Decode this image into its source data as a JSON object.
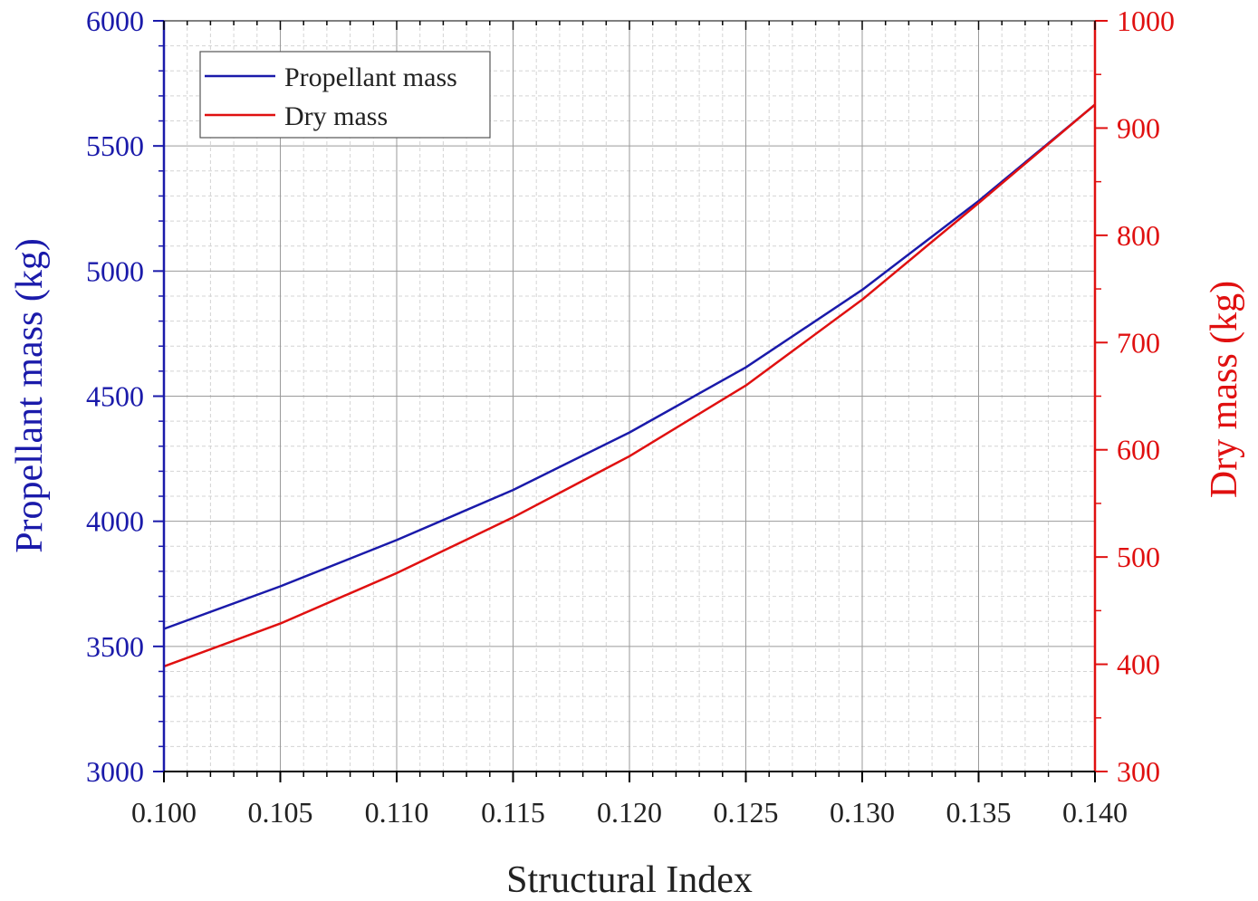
{
  "chart_data": {
    "type": "line",
    "xlabel": "Structural Index",
    "ylabel_left": "Propellant mass (kg)",
    "ylabel_right": "Dry mass (kg)",
    "xlim": [
      0.1,
      0.14
    ],
    "ylim_left": [
      3000,
      6000
    ],
    "ylim_right": [
      300,
      1000
    ],
    "xticks": [
      "0.100",
      "0.105",
      "0.110",
      "0.115",
      "0.120",
      "0.125",
      "0.130",
      "0.135",
      "0.140"
    ],
    "yticks_left": [
      "3000",
      "3500",
      "4000",
      "4500",
      "5000",
      "5500",
      "6000"
    ],
    "yticks_right": [
      "300",
      "400",
      "500",
      "600",
      "700",
      "800",
      "900",
      "1000"
    ],
    "grid": true,
    "legend_position": "top-left",
    "colors": {
      "left_axis": "#1a1aaa",
      "right_axis": "#e01010"
    },
    "series": [
      {
        "name": "Propellant mass",
        "axis": "left",
        "color": "#1a1aaa",
        "x": [
          0.1,
          0.105,
          0.11,
          0.115,
          0.12,
          0.125,
          0.13,
          0.135,
          0.14
        ],
        "values": [
          3570,
          3740,
          3925,
          4125,
          4355,
          4615,
          4925,
          5280,
          5665
        ]
      },
      {
        "name": "Dry mass",
        "axis": "right",
        "color": "#e01010",
        "x": [
          0.1,
          0.105,
          0.11,
          0.115,
          0.12,
          0.125,
          0.13,
          0.135,
          0.14
        ],
        "values": [
          398,
          438,
          485,
          537,
          594,
          660,
          740,
          830,
          922
        ]
      }
    ]
  }
}
